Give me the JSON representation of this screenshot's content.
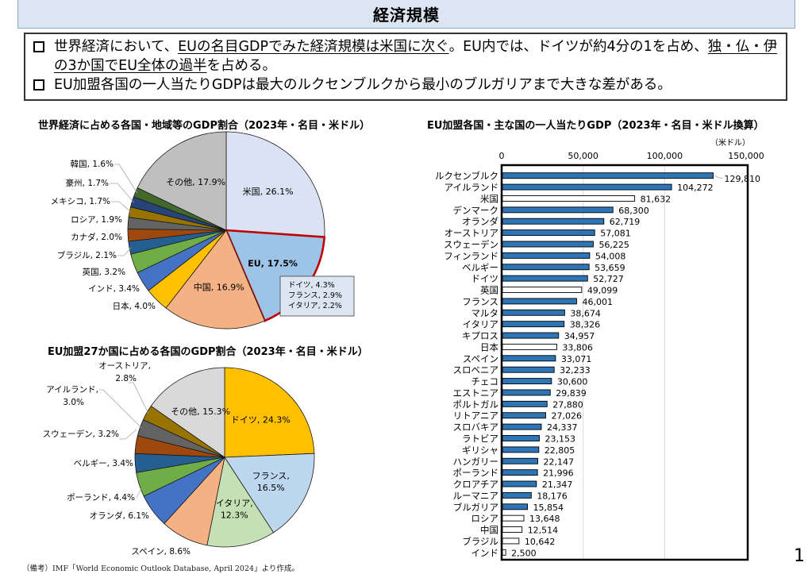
{
  "header": {
    "title": "経済規模"
  },
  "summary": {
    "bullets": [
      {
        "segments": [
          {
            "text": "世界経済において、",
            "u": false
          },
          {
            "text": "EUの名目GDPでみた経済規模は米国に次ぐ",
            "u": true
          },
          {
            "text": "。EU内では、ドイツが約4分の1を占め、",
            "u": false
          },
          {
            "text": "独・仏・伊の3か国でEU全体の過半",
            "u": true
          },
          {
            "text": "を占める。",
            "u": false
          }
        ]
      },
      {
        "segments": [
          {
            "text": "EU加盟各国の一人当たりGDPは最大のルクセンブルクから最小のブルガリアまで大きな差がある。",
            "u": false
          }
        ]
      }
    ]
  },
  "footer": {
    "note": "（備考）IMF「World Economic Outlook Database, April 2024」より作成。"
  },
  "page_number": "1",
  "chart_data": [
    {
      "type": "pie",
      "title": "世界経済に占める各国・地域等のGDP割合（2023年・名目・米ドル）",
      "unit": "%",
      "slices": [
        {
          "label": "米国",
          "value": 26.1,
          "color": "#dae3f3",
          "inside": true
        },
        {
          "label": "EU",
          "value": 17.5,
          "color": "#9dc3e6",
          "inside": true,
          "highlight": "#c00000",
          "bold": true
        },
        {
          "label": "中国",
          "value": 16.9,
          "color": "#f4b183",
          "inside": true
        },
        {
          "label": "日本",
          "value": 4.0,
          "color": "#ffc000"
        },
        {
          "label": "インド",
          "value": 3.4,
          "color": "#4472c4"
        },
        {
          "label": "英国",
          "value": 3.2,
          "color": "#70ad47"
        },
        {
          "label": "ブラジル",
          "value": 2.1,
          "color": "#255e91"
        },
        {
          "label": "カナダ",
          "value": 2.0,
          "color": "#9e480e"
        },
        {
          "label": "ロシア",
          "value": 1.9,
          "color": "#636363"
        },
        {
          "label": "メキシコ",
          "value": 1.7,
          "color": "#997300"
        },
        {
          "label": "豪州",
          "value": 1.7,
          "color": "#264478"
        },
        {
          "label": "韓国",
          "value": 1.6,
          "color": "#43682b"
        },
        {
          "label": "その他",
          "value": 17.9,
          "color": "#bfbfbf",
          "inside": true
        }
      ],
      "callout": {
        "parent": "EU",
        "lines": [
          "ドイツ, 4.3%",
          "フランス, 2.9%",
          "イタリア, 2.2%"
        ]
      }
    },
    {
      "type": "pie",
      "title": "EU加盟27か国に占める各国のGDP割合（2023年・名目・米ドル）",
      "unit": "%",
      "slices": [
        {
          "label": "ドイツ",
          "value": 24.3,
          "color": "#ffc000",
          "inside": true
        },
        {
          "label": "フランス",
          "value": 16.5,
          "color": "#bdd7ee",
          "inside": true,
          "wrap": true
        },
        {
          "label": "イタリア",
          "value": 12.3,
          "color": "#c5e0b4",
          "inside": true,
          "wrap": true
        },
        {
          "label": "スペイン",
          "value": 8.6,
          "color": "#f4b183"
        },
        {
          "label": "オランダ",
          "value": 6.1,
          "color": "#4472c4"
        },
        {
          "label": "ポーランド",
          "value": 4.4,
          "color": "#70ad47"
        },
        {
          "label": "ベルギー",
          "value": 3.4,
          "color": "#255e91"
        },
        {
          "label": "スウェーデン",
          "value": 3.2,
          "color": "#9e480e"
        },
        {
          "label": "アイルランド",
          "value": 3.0,
          "color": "#636363",
          "wrap": true
        },
        {
          "label": "オーストリア",
          "value": 2.8,
          "color": "#997300",
          "wrap": true
        },
        {
          "label": "その他",
          "value": 15.3,
          "color": "#d9d9d9",
          "inside": true
        }
      ]
    },
    {
      "type": "bar",
      "orientation": "horizontal",
      "title": "EU加盟各国・主な国の一人当たりGDP（2023年・名目・米ドル換算）",
      "unit_label": "（米ドル）",
      "xlim": [
        0,
        150000
      ],
      "xticks": [
        0,
        50000,
        100000,
        150000
      ],
      "xtick_labels": [
        "0",
        "50,000",
        "100,000",
        "150,000"
      ],
      "grid": true,
      "legend": "none",
      "series_colors": {
        "eu": "#2e75b6",
        "non_eu": "#ffffff"
      },
      "categories": [
        "ルクセンブルク",
        "アイルランド",
        "米国",
        "デンマーク",
        "オランダ",
        "オーストリア",
        "スウェーデン",
        "フィンランド",
        "ベルギー",
        "ドイツ",
        "英国",
        "フランス",
        "マルタ",
        "イタリア",
        "キプロス",
        "日本",
        "スペイン",
        "スロベニア",
        "チェコ",
        "エストニア",
        "ポルトガル",
        "リトアニア",
        "スロバキア",
        "ラトビア",
        "ギリシャ",
        "ハンガリー",
        "ポーランド",
        "クロアチア",
        "ルーマニア",
        "ブルガリア",
        "ロシア",
        "中国",
        "ブラジル",
        "インド"
      ],
      "values": [
        129810,
        104272,
        81632,
        68300,
        62719,
        57081,
        56225,
        54008,
        53659,
        52727,
        49099,
        46001,
        38674,
        38326,
        34957,
        33806,
        33071,
        32233,
        30600,
        29839,
        27880,
        27026,
        24337,
        23153,
        22805,
        22147,
        21996,
        21347,
        18176,
        15854,
        13648,
        12514,
        10642,
        2500
      ],
      "value_labels": [
        "129,810",
        "104,272",
        "81,632",
        "68,300",
        "62,719",
        "57,081",
        "56,225",
        "54,008",
        "53,659",
        "52,727",
        "49,099",
        "46,001",
        "38,674",
        "38,326",
        "34,957",
        "33,806",
        "33,071",
        "32,233",
        "30,600",
        "29,839",
        "27,880",
        "27,026",
        "24,337",
        "23,153",
        "22,805",
        "22,147",
        "21,996",
        "21,347",
        "18,176",
        "15,854",
        "13,648",
        "12,514",
        "10,642",
        "2,500"
      ],
      "is_eu": [
        true,
        true,
        false,
        true,
        true,
        true,
        true,
        true,
        true,
        true,
        false,
        true,
        true,
        true,
        true,
        false,
        true,
        true,
        true,
        true,
        true,
        true,
        true,
        true,
        true,
        true,
        true,
        true,
        true,
        true,
        false,
        false,
        false,
        false
      ]
    }
  ]
}
